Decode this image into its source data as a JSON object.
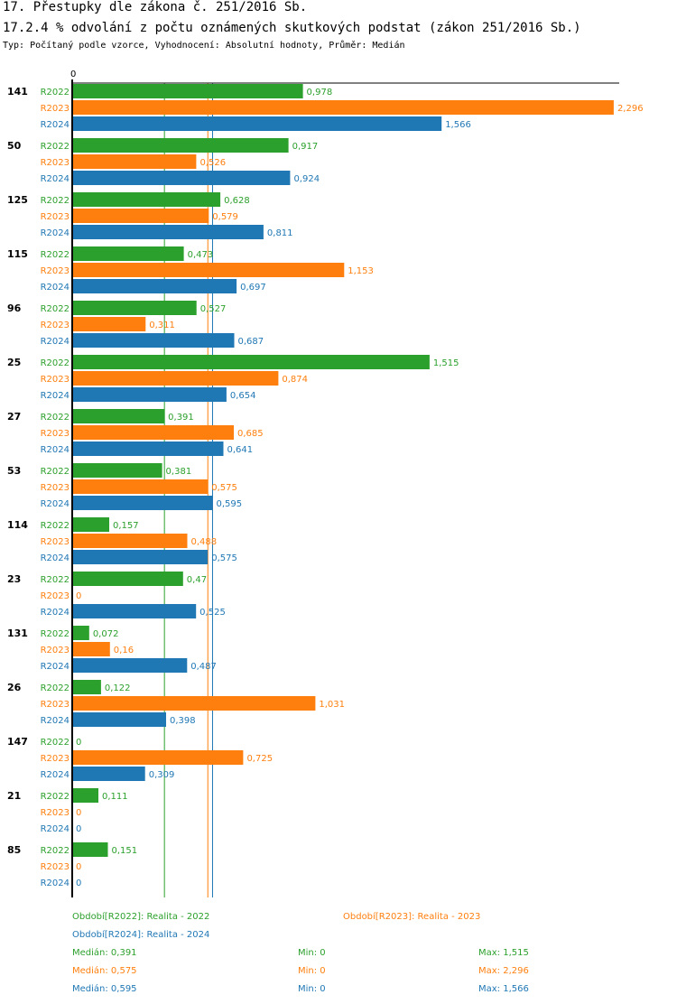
{
  "chart_data": {
    "type": "bar",
    "orientation": "horizontal",
    "title": "17. Přestupky dle zákona č. 251/2016 Sb.",
    "subtitle": "17.2.4 % odvolání z počtu oznámených skutkových podstat (zákon 251/2016 Sb.)",
    "caption": "Typ: Počítaný podle vzorce, Vyhodnocení: Absolutní hodnoty, Průměr: Medián",
    "axis_zero_label": "0",
    "xlim": [
      0,
      2.5
    ],
    "categories": [
      "141",
      "50",
      "125",
      "115",
      "96",
      "25",
      "27",
      "53",
      "114",
      "23",
      "131",
      "26",
      "147",
      "21",
      "85"
    ],
    "series": [
      {
        "name": "R2022",
        "color": "#2ca02c",
        "values": [
          0.978,
          0.917,
          0.628,
          0.473,
          0.527,
          1.515,
          0.391,
          0.381,
          0.157,
          0.47,
          0.072,
          0.122,
          0,
          0.111,
          0.151
        ],
        "labels": [
          "0,978",
          "0,917",
          "0,628",
          "0,473",
          "0,527",
          "1,515",
          "0,391",
          "0,381",
          "0,157",
          "0,47",
          "0,072",
          "0,122",
          "0",
          "0,111",
          "0,151"
        ]
      },
      {
        "name": "R2023",
        "color": "#ff7f0e",
        "values": [
          2.296,
          0.526,
          0.579,
          1.153,
          0.311,
          0.874,
          0.685,
          0.575,
          0.488,
          0,
          0.16,
          1.031,
          0.725,
          0,
          0
        ],
        "labels": [
          "2,296",
          "0,526",
          "0,579",
          "1,153",
          "0,311",
          "0,874",
          "0,685",
          "0,575",
          "0,488",
          "0",
          "0,16",
          "1,031",
          "0,725",
          "0",
          "0"
        ]
      },
      {
        "name": "R2024",
        "color": "#1f77b4",
        "values": [
          1.566,
          0.924,
          0.811,
          0.697,
          0.687,
          0.654,
          0.641,
          0.595,
          0.575,
          0.525,
          0.487,
          0.398,
          0.309,
          0,
          0
        ],
        "labels": [
          "1,566",
          "0,924",
          "0,811",
          "0,697",
          "0,687",
          "0,654",
          "0,641",
          "0,595",
          "0,575",
          "0,525",
          "0,487",
          "0,398",
          "0,309",
          "0",
          "0"
        ]
      }
    ],
    "median_lines": [
      0.391,
      0.575,
      0.595
    ],
    "legend": {
      "periods": [
        {
          "text": "Období[R2022]: Realita - 2022",
          "color": "#2ca02c"
        },
        {
          "text": "Období[R2023]: Realita - 2023",
          "color": "#ff7f0e"
        },
        {
          "text": "Období[R2024]: Realita - 2024",
          "color": "#1f77b4"
        }
      ],
      "stats": [
        {
          "median": "Medián: 0,391",
          "min": "Min: 0",
          "max": "Max: 1,515",
          "color": "#2ca02c"
        },
        {
          "median": "Medián: 0,575",
          "min": "Min: 0",
          "max": "Max: 2,296",
          "color": "#ff7f0e"
        },
        {
          "median": "Medián: 0,595",
          "min": "Min: 0",
          "max": "Max: 1,566",
          "color": "#1f77b4"
        }
      ]
    }
  }
}
